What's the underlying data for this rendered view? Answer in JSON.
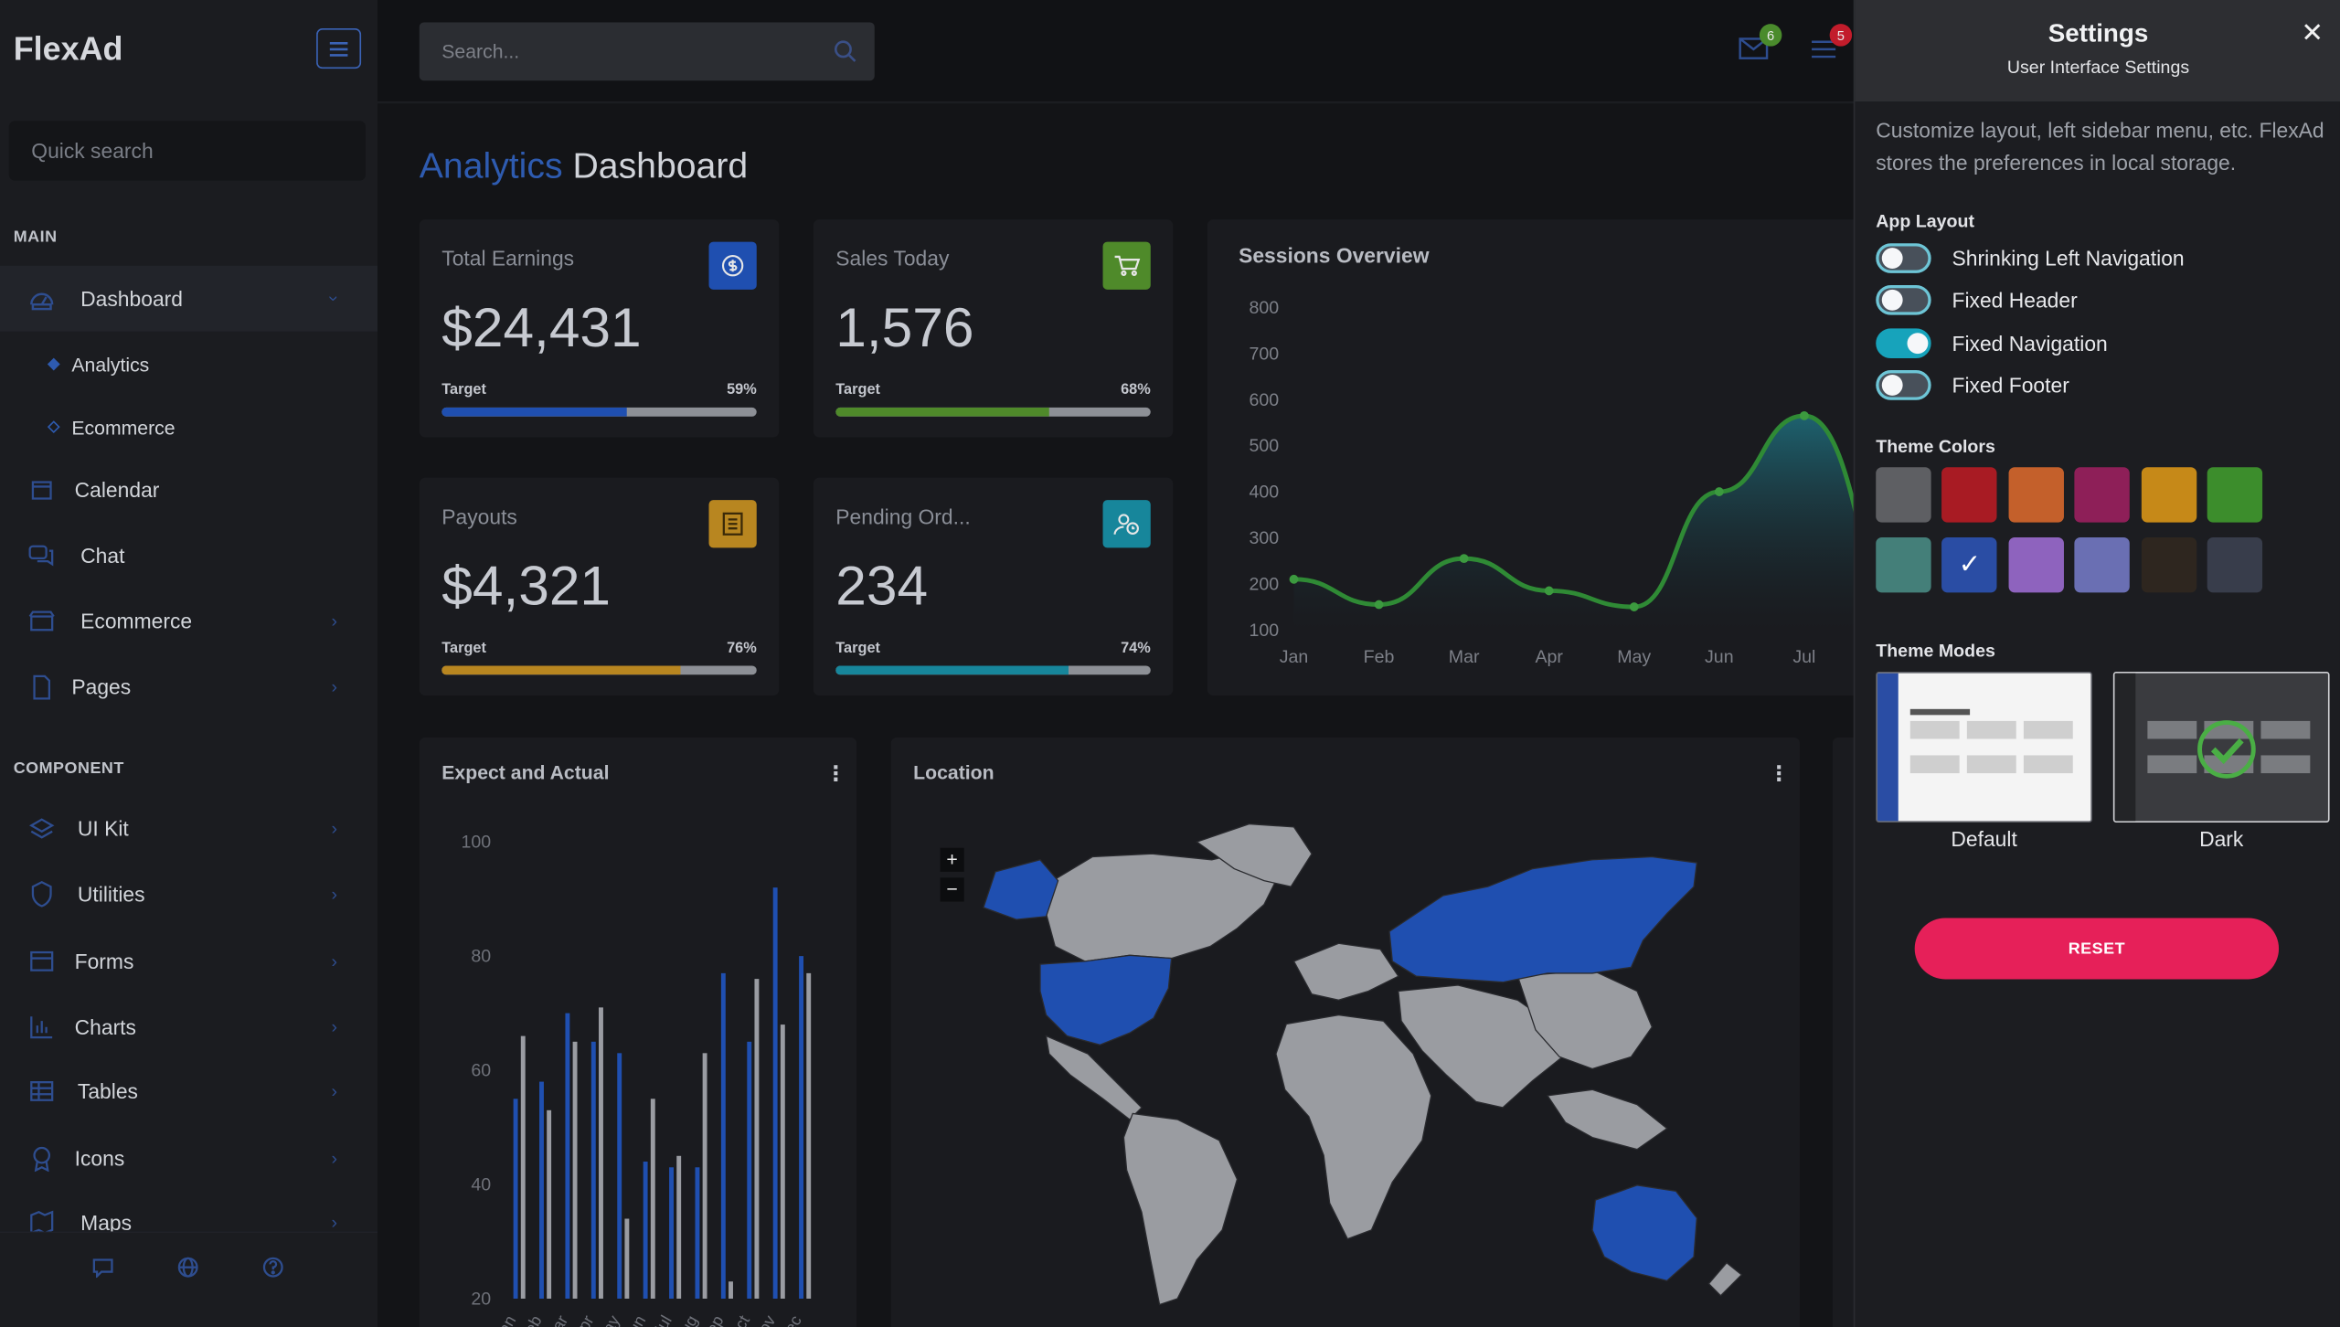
{
  "sidebar": {
    "brand": "FlexAd",
    "quick_search_placeholder": "Quick search",
    "section_main": "MAIN",
    "section_component": "COMPONENT",
    "items": [
      {
        "label": "Dashboard",
        "icon": "dashboard-icon"
      },
      {
        "label": "Calendar",
        "icon": "calendar-icon"
      },
      {
        "label": "Chat",
        "icon": "chat-icon"
      },
      {
        "label": "Ecommerce",
        "icon": "store-icon"
      },
      {
        "label": "Pages",
        "icon": "page-icon"
      }
    ],
    "subitems": [
      {
        "label": "Analytics"
      },
      {
        "label": "Ecommerce"
      }
    ],
    "component_items": [
      {
        "label": "UI Kit",
        "icon": "layers-icon"
      },
      {
        "label": "Utilities",
        "icon": "shield-icon"
      },
      {
        "label": "Forms",
        "icon": "form-icon"
      },
      {
        "label": "Charts",
        "icon": "chart-icon"
      },
      {
        "label": "Tables",
        "icon": "table-icon"
      },
      {
        "label": "Icons",
        "icon": "badge-icon"
      },
      {
        "label": "Maps",
        "icon": "map-icon"
      }
    ]
  },
  "topbar": {
    "search_placeholder": "Search...",
    "mail_badge": "6",
    "notification_badge": "5",
    "mail_badge_color": "#4a8b2c",
    "notification_badge_color": "#c21c2b"
  },
  "main": {
    "title_accent": "Analytics",
    "title_rest": "Dashboard",
    "stats": [
      {
        "title": "Total Earnings",
        "value": "$24,431",
        "target_label": "Target",
        "percent_text": "59%",
        "percent": 59,
        "color": "#1f4fb0",
        "icon": "dollar-icon"
      },
      {
        "title": "Sales Today",
        "value": "1,576",
        "target_label": "Target",
        "percent_text": "68%",
        "percent": 68,
        "color": "#4f8a2a",
        "icon": "cart-icon"
      },
      {
        "title": "Payouts",
        "value": "$4,321",
        "target_label": "Target",
        "percent_text": "76%",
        "percent": 76,
        "color": "#b88620",
        "icon": "receipt-icon"
      },
      {
        "title": "Pending Ord...",
        "value": "234",
        "target_label": "Target",
        "percent_text": "74%",
        "percent": 74,
        "color": "#17869b",
        "icon": "user-clock-icon"
      }
    ],
    "sessions_title": "Sessions Overview",
    "expect_title": "Expect and Actual",
    "location_title": "Location",
    "zoom_in": "+",
    "zoom_out": "−"
  },
  "chart_data": [
    {
      "type": "area",
      "title": "Sessions Overview",
      "categories": [
        "Jan",
        "Feb",
        "Mar",
        "Apr",
        "May",
        "Jun",
        "Jul"
      ],
      "values": [
        210,
        155,
        255,
        185,
        150,
        400,
        565
      ],
      "ylim": [
        100,
        800
      ],
      "yticks": [
        800,
        700,
        600,
        500,
        400,
        300,
        200,
        100
      ],
      "grid": false
    },
    {
      "type": "bar",
      "title": "Expect and Actual",
      "categories": [
        "Jan",
        "Feb",
        "Mar",
        "Apr",
        "May",
        "Jun",
        "Jul",
        "Aug",
        "Sep",
        "Oct",
        "Nov",
        "Dec"
      ],
      "tick_labels": [
        "Jan",
        "Feb",
        "Mar",
        "Apr",
        "May",
        "Jun",
        "Jul",
        "Aug",
        "Sep",
        "Oct",
        "Nov",
        "Dec"
      ],
      "series": [
        {
          "values": [
            55,
            58,
            70,
            65,
            63,
            44,
            43,
            43,
            77,
            65,
            92,
            80
          ],
          "color": "#1f4fb0"
        },
        {
          "values": [
            66,
            53,
            65,
            71,
            34,
            55,
            45,
            63,
            23,
            76,
            68,
            77
          ],
          "color": "#9a9ca2"
        }
      ],
      "ylim": [
        20,
        100
      ],
      "yticks": [
        100,
        80,
        60,
        40,
        20
      ]
    }
  ],
  "settings": {
    "title": "Settings",
    "subtitle": "User Interface Settings",
    "description": "Customize layout, left sidebar menu, etc. FlexAd stores the preferences in local storage.",
    "app_layout_label": "App Layout",
    "toggles": [
      {
        "label": "Shrinking Left Navigation",
        "on": false
      },
      {
        "label": "Fixed Header",
        "on": false
      },
      {
        "label": "Fixed Navigation",
        "on": true
      },
      {
        "label": "Fixed Footer",
        "on": false
      }
    ],
    "theme_colors_label": "Theme Colors",
    "theme_colors": [
      "#5e5f63",
      "#a81b23",
      "#c4602b",
      "#8e1f58",
      "#c68918",
      "#3c8d2c",
      "#447f79",
      "#2a4da4",
      "#8e63be",
      "#6a6fb3",
      "#2e261f",
      "#383d4b"
    ],
    "selected_color_index": 7,
    "theme_modes_label": "Theme Modes",
    "modes": [
      {
        "label": "Default"
      },
      {
        "label": "Dark"
      }
    ],
    "selected_mode_index": 1,
    "reset_label": "RESET"
  }
}
